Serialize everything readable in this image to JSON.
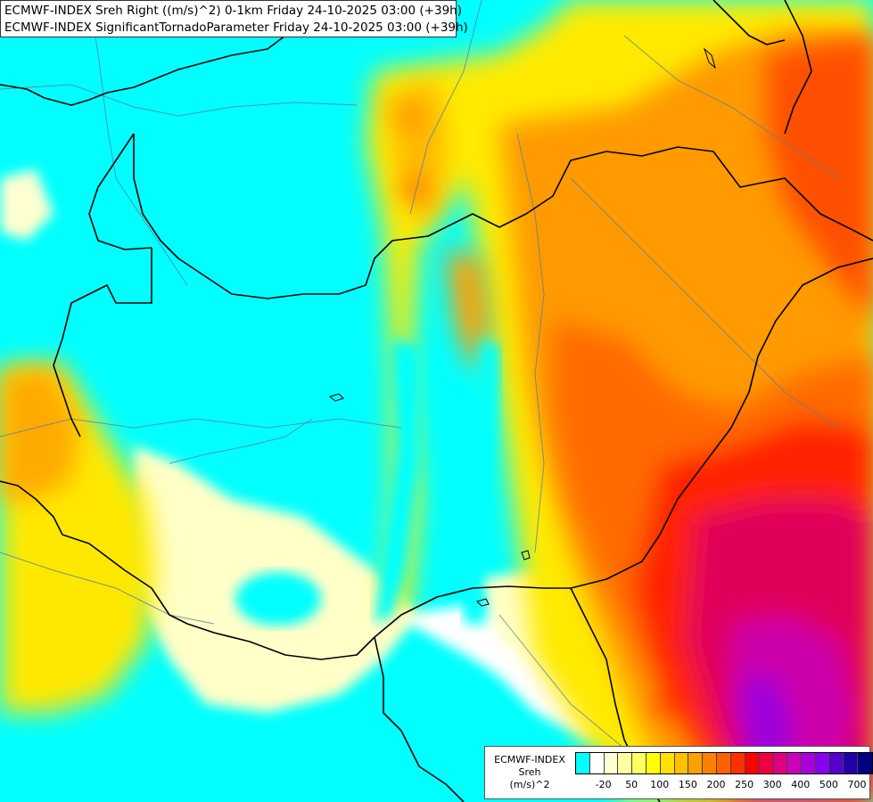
{
  "title": {
    "line1": "ECMWF-INDEX Sreh Right ((m/s)^2) 0-1km Friday 24-10-2025 03:00 (+39h)",
    "line2": "ECMWF-INDEX SignificantTornadoParameter Friday 24-10-2025 03:00 (+39h)"
  },
  "legend": {
    "label_line1": "ECMWF-INDEX",
    "label_line2": "Sreh",
    "label_line3": "(m/s)^2",
    "colors": [
      "#00ffff",
      "#ffffff",
      "#ffffd0",
      "#ffffa0",
      "#ffff60",
      "#ffff00",
      "#ffe000",
      "#ffc000",
      "#ffa000",
      "#ff8000",
      "#ff6000",
      "#ff3000",
      "#ff0000",
      "#ee0040",
      "#dd0080",
      "#cc00bb",
      "#aa00dd",
      "#8800ee",
      "#5500cc",
      "#2200aa",
      "#000080"
    ],
    "ticks": [
      "-20",
      "50",
      "100",
      "150",
      "200",
      "250",
      "300",
      "400",
      "500",
      "700"
    ]
  }
}
